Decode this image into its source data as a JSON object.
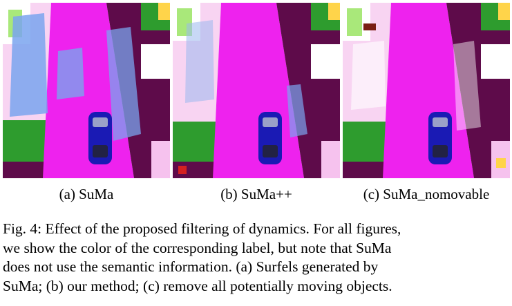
{
  "panels": [
    {
      "id": "a",
      "caption": "(a)  SuMa",
      "variant": "suma"
    },
    {
      "id": "b",
      "caption": "(b)  SuMa++",
      "variant": "sumapp"
    },
    {
      "id": "c",
      "caption": "(c)  SuMa_nomovable",
      "variant": "nomovable"
    }
  ],
  "figure_caption": {
    "lines": [
      "Fig. 4: Effect of the proposed filtering of dynamics. For all figures,",
      "we show the color of the corresponding label, but note that SuMa",
      "does not use the semantic information. (a) Surfels generated by",
      "SuMa; (b) our method; (c) remove all potentially moving objects."
    ]
  },
  "colors": {
    "road": "#ee22ee",
    "sidewalk": "#f6c2ee",
    "vegetation": "#5e0b4a",
    "grass": "#2e9c2e",
    "car_blue_dynamic": "#7aa4ee",
    "ego_car": "#1a1ab4",
    "trunk": "#7a1e14",
    "pole": "#ffe050"
  }
}
